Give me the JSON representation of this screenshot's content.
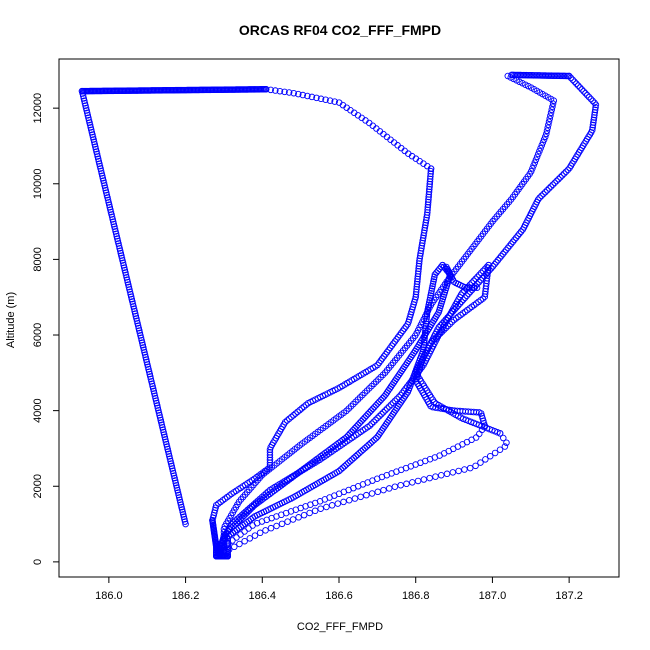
{
  "chart_data": {
    "type": "scatter",
    "title": "ORCAS RF04 CO2_FFF_FMPD",
    "xlabel": "CO2_FFF_FMPD",
    "ylabel": "Altitude (m)",
    "xlim": [
      185.87,
      187.33
    ],
    "ylim": [
      -400,
      13300
    ],
    "xticks": [
      186.0,
      186.2,
      186.4,
      186.6,
      186.8,
      187.0,
      187.2
    ],
    "xtick_labels": [
      "186.0",
      "186.2",
      "186.4",
      "186.6",
      "186.8",
      "187.0",
      "187.2"
    ],
    "yticks": [
      0,
      2000,
      4000,
      6000,
      8000,
      10000,
      12000
    ],
    "ytick_labels": [
      "0",
      "2000",
      "4000",
      "6000",
      "8000",
      "10000",
      "12000"
    ],
    "grid": false,
    "marker": "open-circle",
    "marker_color": "#0000ff",
    "trajectory_segments": [
      {
        "name": "",
        "points": [
          [
            186.2,
            1000
          ],
          [
            185.93,
            12450
          ]
        ],
        "n": 180
      },
      {
        "name": "",
        "points": [
          [
            185.93,
            12450
          ],
          [
            186.41,
            12500
          ]
        ],
        "n": 160
      },
      {
        "name": "",
        "points": [
          [
            186.41,
            12500
          ],
          [
            186.48,
            12400
          ],
          [
            186.6,
            12150
          ],
          [
            186.68,
            11600
          ],
          [
            186.78,
            10800
          ],
          [
            186.84,
            10400
          ]
        ],
        "n": 42
      },
      {
        "name": "",
        "points": [
          [
            186.84,
            10400
          ],
          [
            186.83,
            9200
          ],
          [
            186.81,
            8000
          ],
          [
            186.8,
            7000
          ],
          [
            186.78,
            6300
          ],
          [
            186.7,
            5200
          ],
          [
            186.6,
            4600
          ],
          [
            186.52,
            4200
          ],
          [
            186.46,
            3700
          ],
          [
            186.42,
            3000
          ],
          [
            186.42,
            2500
          ],
          [
            186.38,
            2200
          ],
          [
            186.32,
            1800
          ],
          [
            186.28,
            1500
          ],
          [
            186.27,
            1100
          ]
        ],
        "n": 170
      },
      {
        "name": "",
        "points": [
          [
            186.27,
            1100
          ],
          [
            186.28,
            400
          ],
          [
            186.29,
            200
          ]
        ],
        "n": 30
      },
      {
        "name": "",
        "points": [
          [
            186.29,
            200
          ],
          [
            186.3,
            600
          ],
          [
            186.38,
            1200
          ],
          [
            186.48,
            1700
          ],
          [
            186.6,
            2400
          ],
          [
            186.7,
            3300
          ],
          [
            186.78,
            4500
          ],
          [
            186.82,
            5600
          ],
          [
            186.83,
            6600
          ],
          [
            186.85,
            7600
          ],
          [
            186.87,
            7850
          ]
        ],
        "n": 160
      },
      {
        "name": "",
        "points": [
          [
            186.87,
            7850
          ],
          [
            186.89,
            7600
          ],
          [
            186.86,
            6600
          ],
          [
            186.8,
            5600
          ],
          [
            186.72,
            4400
          ],
          [
            186.62,
            3300
          ],
          [
            186.5,
            2400
          ],
          [
            186.38,
            1500
          ],
          [
            186.3,
            700
          ],
          [
            186.29,
            250
          ]
        ],
        "n": 160
      },
      {
        "name": "",
        "points": [
          [
            186.3,
            250
          ],
          [
            186.4,
            800
          ],
          [
            186.55,
            1400
          ],
          [
            186.75,
            2000
          ],
          [
            186.95,
            2500
          ],
          [
            187.04,
            3100
          ],
          [
            187.02,
            3400
          ]
        ],
        "n": 55
      },
      {
        "name": "",
        "points": [
          [
            187.02,
            3400
          ],
          [
            186.92,
            3800
          ],
          [
            186.85,
            4200
          ],
          [
            186.8,
            5000
          ],
          [
            186.84,
            5800
          ],
          [
            186.9,
            6400
          ],
          [
            186.98,
            7000
          ],
          [
            186.99,
            7850
          ]
        ],
        "n": 90
      },
      {
        "name": "",
        "points": [
          [
            186.99,
            7850
          ],
          [
            186.92,
            7100
          ],
          [
            186.86,
            6000
          ],
          [
            186.82,
            5200
          ],
          [
            186.76,
            4400
          ],
          [
            186.68,
            3600
          ],
          [
            186.55,
            2700
          ],
          [
            186.42,
            1900
          ],
          [
            186.32,
            1000
          ],
          [
            186.28,
            250
          ]
        ],
        "n": 150
      },
      {
        "name": "",
        "points": [
          [
            186.28,
            250
          ],
          [
            186.38,
            1000
          ],
          [
            186.55,
            1600
          ],
          [
            186.7,
            2200
          ],
          [
            186.86,
            2800
          ],
          [
            186.96,
            3300
          ],
          [
            186.98,
            3600
          ]
        ],
        "n": 60
      },
      {
        "name": "",
        "points": [
          [
            186.98,
            3600
          ],
          [
            186.97,
            3950
          ],
          [
            186.9,
            4000
          ],
          [
            186.84,
            4100
          ],
          [
            186.8,
            4800
          ],
          [
            186.82,
            5400
          ],
          [
            186.86,
            6200
          ],
          [
            186.93,
            7000
          ],
          [
            187.0,
            7800
          ],
          [
            187.08,
            8800
          ],
          [
            187.12,
            9600
          ],
          [
            187.2,
            10400
          ],
          [
            187.26,
            11400
          ],
          [
            187.27,
            12100
          ],
          [
            187.2,
            12850
          ]
        ],
        "n": 180
      },
      {
        "name": "",
        "points": [
          [
            187.2,
            12850
          ],
          [
            187.05,
            12880
          ]
        ],
        "n": 40
      },
      {
        "name": "",
        "points": [
          [
            187.04,
            12850
          ],
          [
            187.1,
            12550
          ],
          [
            187.16,
            12200
          ],
          [
            187.14,
            11300
          ],
          [
            187.1,
            10300
          ],
          [
            187.05,
            9600
          ],
          [
            187.0,
            9000
          ],
          [
            186.94,
            8200
          ],
          [
            186.88,
            7400
          ],
          [
            186.84,
            6800
          ],
          [
            186.8,
            6000
          ],
          [
            186.72,
            5000
          ],
          [
            186.62,
            4000
          ],
          [
            186.5,
            3100
          ],
          [
            186.4,
            2300
          ],
          [
            186.34,
            1600
          ],
          [
            186.3,
            900
          ],
          [
            186.3,
            400
          ],
          [
            186.31,
            150
          ]
        ],
        "n": 200
      },
      {
        "name": "",
        "points": [
          [
            186.88,
            7800
          ],
          [
            186.9,
            7400
          ],
          [
            186.93,
            7250
          ],
          [
            186.96,
            7250
          ]
        ],
        "n": 18
      },
      {
        "name": "",
        "points": [
          [
            186.28,
            150
          ],
          [
            186.31,
            150
          ]
        ],
        "n": 14
      },
      {
        "name": "",
        "points": [
          [
            186.31,
            150
          ],
          [
            186.31,
            600
          ]
        ],
        "n": 10
      },
      {
        "name": "",
        "points": [
          [
            186.28,
            150
          ],
          [
            186.28,
            500
          ]
        ],
        "n": 10
      }
    ]
  }
}
